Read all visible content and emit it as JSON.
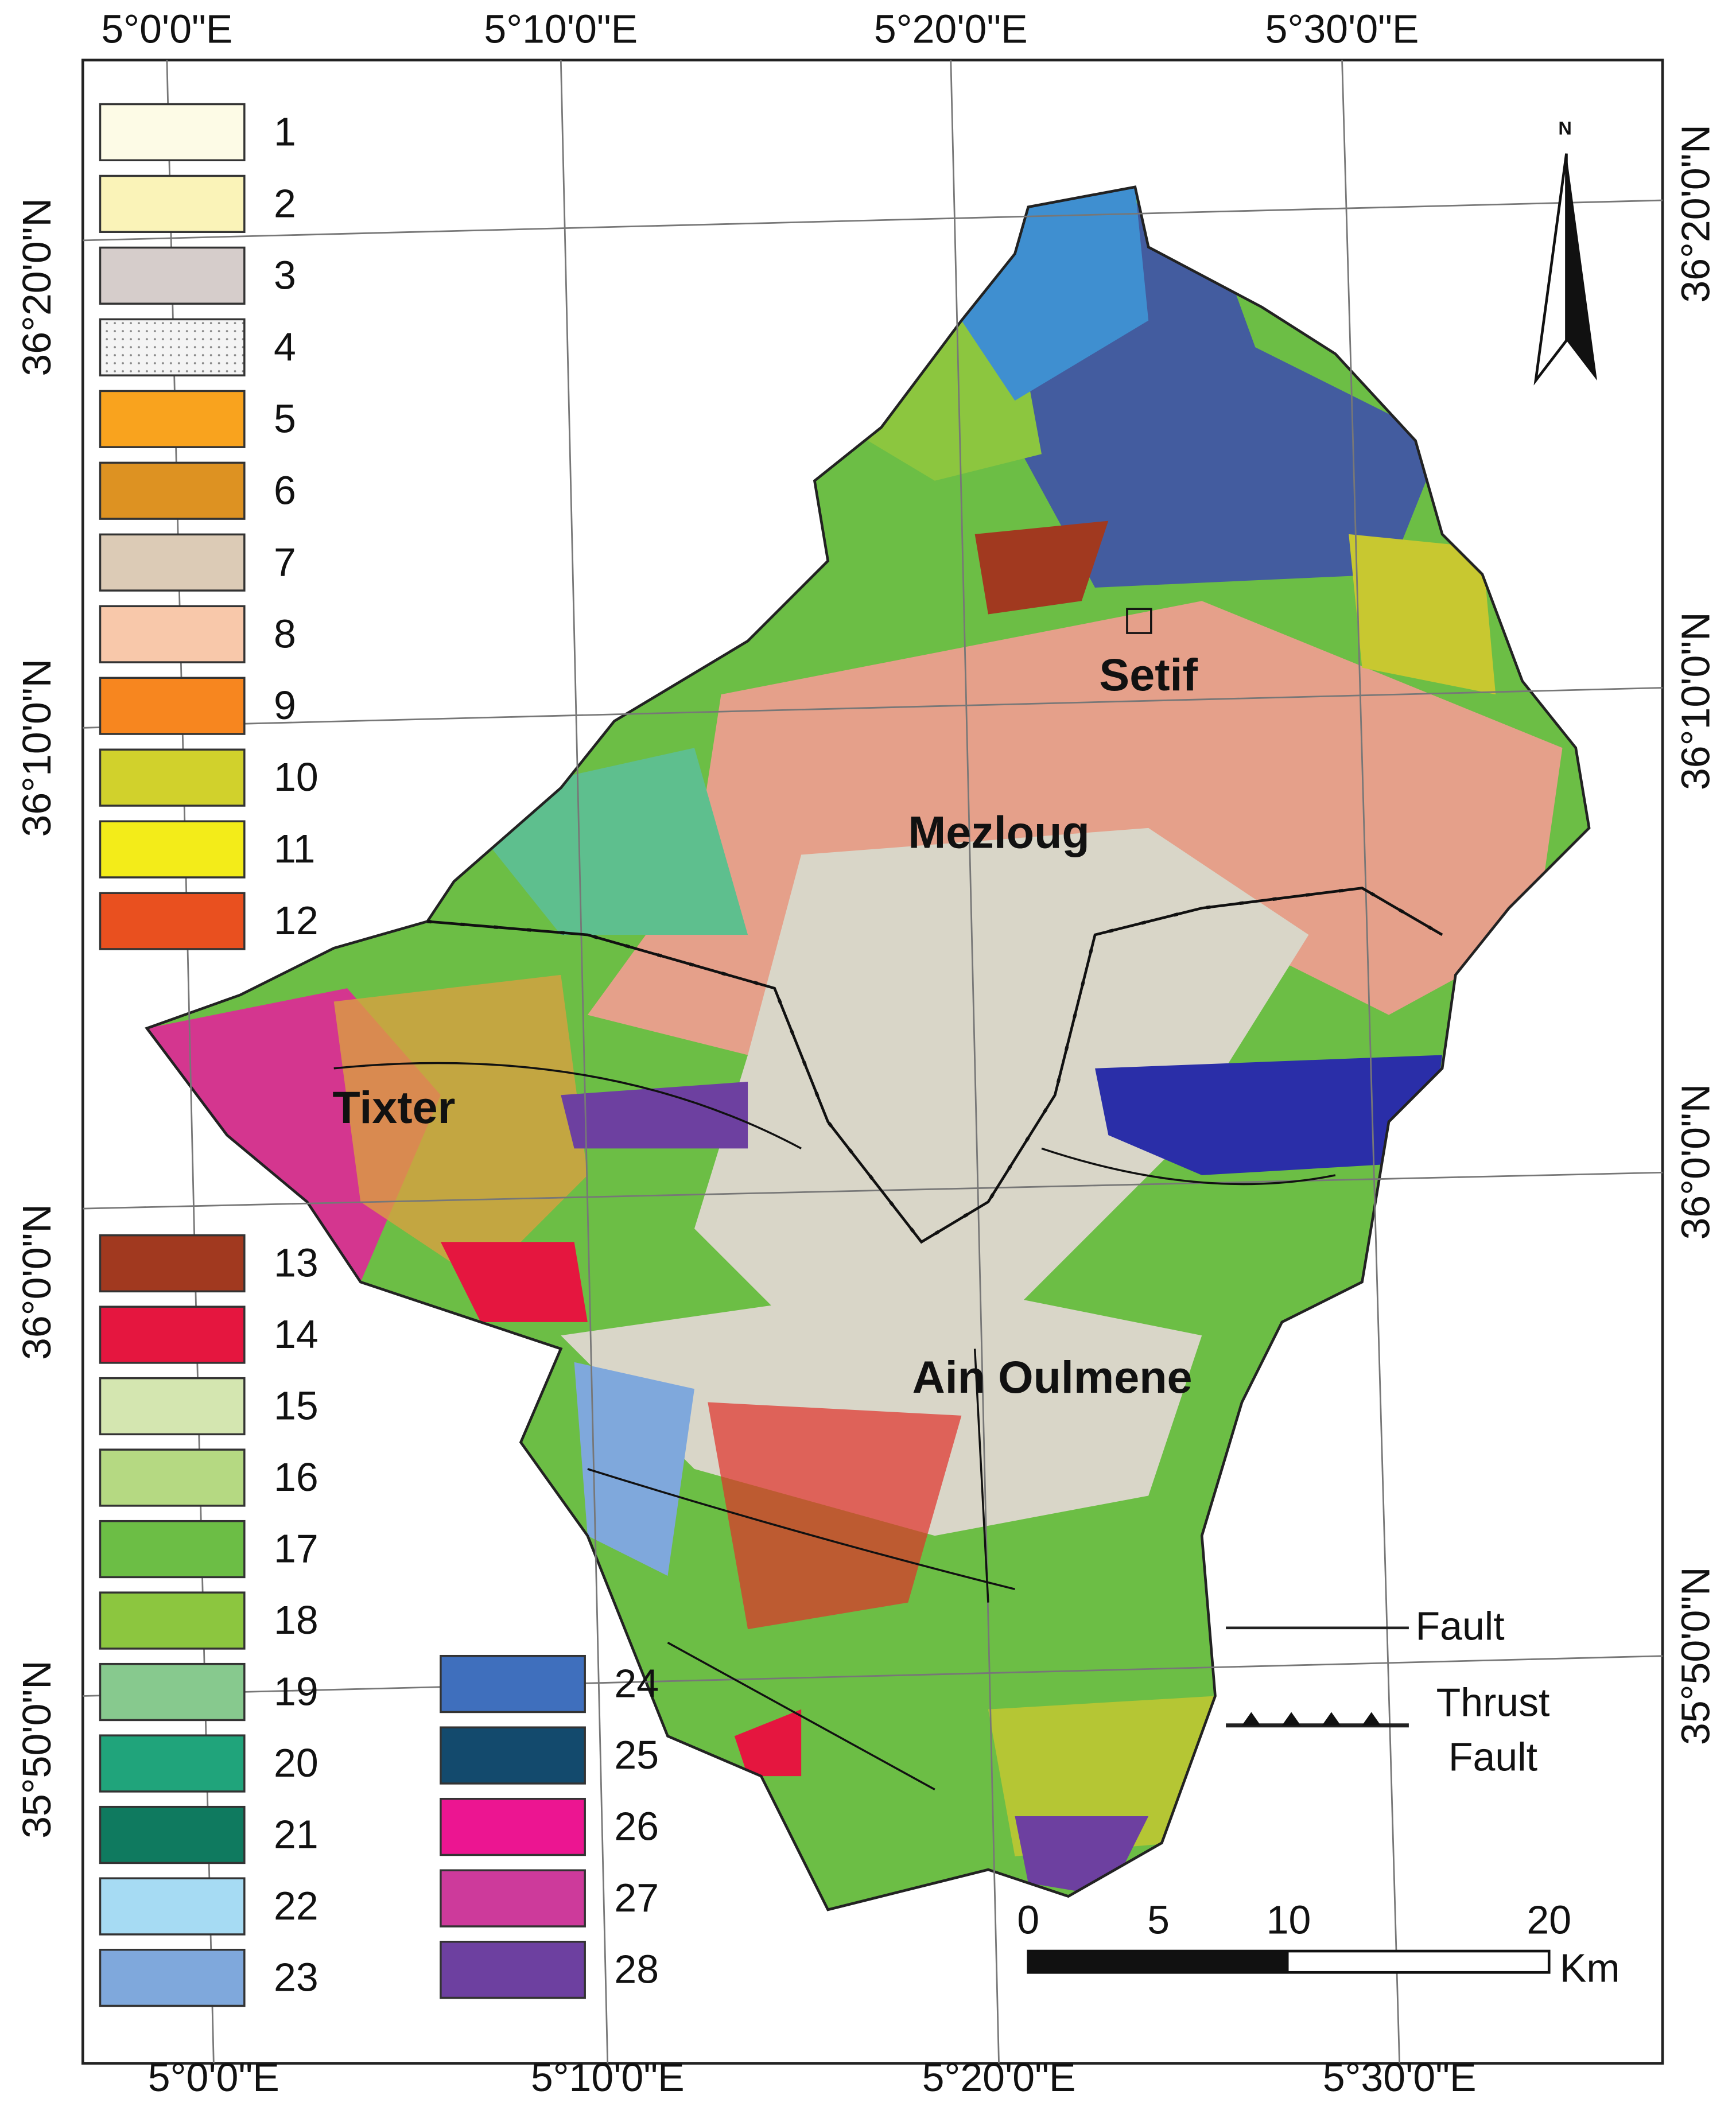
{
  "graticule": {
    "top": [
      "5°0'0\"E",
      "5°10'0\"E",
      "5°20'0\"E",
      "5°30'0\"E"
    ],
    "bottom": [
      "5°0'0\"E",
      "5°10'0\"E",
      "5°20'0\"E",
      "5°30'0\"E"
    ],
    "left": [
      "36°20'0\"N",
      "36°10'0\"N",
      "36°0'0\"N",
      "35°50'0\"N"
    ],
    "right": [
      "36°20'0\"N",
      "36°10'0\"N",
      "36°0'0\"N",
      "35°50'0\"N"
    ]
  },
  "legend": [
    {
      "label": "1",
      "color": "#fdfbe6"
    },
    {
      "label": "2",
      "color": "#faf3b8"
    },
    {
      "label": "3",
      "color": "#d6cdcb"
    },
    {
      "label": "4",
      "color": "#f4f4f4"
    },
    {
      "label": "5",
      "color": "#f9a31e"
    },
    {
      "label": "6",
      "color": "#dd9222"
    },
    {
      "label": "7",
      "color": "#dccbb6"
    },
    {
      "label": "8",
      "color": "#f8c8aa"
    },
    {
      "label": "9",
      "color": "#f7861f"
    },
    {
      "label": "10",
      "color": "#d1d12c"
    },
    {
      "label": "11",
      "color": "#f3ec19"
    },
    {
      "label": "12",
      "color": "#e9501f"
    },
    {
      "label": "13",
      "color": "#a1391f"
    },
    {
      "label": "14",
      "color": "#e5163f"
    },
    {
      "label": "15",
      "color": "#d4e6b0"
    },
    {
      "label": "16",
      "color": "#b5d982"
    },
    {
      "label": "17",
      "color": "#6cbe45"
    },
    {
      "label": "18",
      "color": "#8cc63f"
    },
    {
      "label": "19",
      "color": "#87c98e"
    },
    {
      "label": "20",
      "color": "#20a47b"
    },
    {
      "label": "21",
      "color": "#0f7a5f"
    },
    {
      "label": "22",
      "color": "#a6dbf3"
    },
    {
      "label": "23",
      "color": "#7fa8dc"
    },
    {
      "label": "24",
      "color": "#3f6fbd"
    },
    {
      "label": "25",
      "color": "#134a6d"
    },
    {
      "label": "26",
      "color": "#ec1591"
    },
    {
      "label": "27",
      "color": "#cd3a9b"
    },
    {
      "label": "28",
      "color": "#6d40a0"
    }
  ],
  "places": [
    "Setif",
    "Mezloug",
    "Tixter",
    "Ain Oulmene"
  ],
  "north": "N",
  "fault_legend": {
    "fault": "Fault",
    "thrust": "Thrust",
    "thrust_2": "Fault"
  },
  "scale_bar": {
    "ticks": [
      0,
      5,
      10,
      20
    ],
    "unit": "Km"
  }
}
